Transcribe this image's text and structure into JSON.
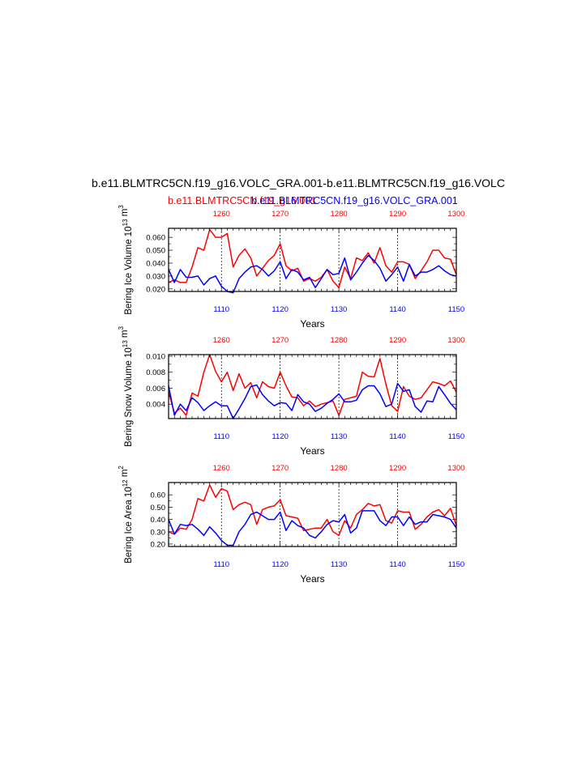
{
  "title": "b.e11.BLMTRC5CN.f19_g16.VOLC_GRA.001-b.e11.BLMTRC5CN.f19_g16.VOLC",
  "subtitle_red": "b.e11.BLMTRC5CN.f19_g16.001",
  "subtitle_blue": "b.e11.BLMTRC5CN.f19_g16.VOLC_GRA.001",
  "colors": {
    "red_series": "#ff0000",
    "blue_series": "#0000ff",
    "axis": "#000000"
  },
  "chart_data": [
    {
      "type": "line",
      "ylabel": "Bering Ice Volume 10",
      "ylabel_sup": "13",
      "ylabel_unit": " m",
      "ylabel_unit_sup": "3",
      "xlabel": "Years",
      "ylim": [
        0.018,
        0.067
      ],
      "yticks": [
        0.02,
        0.03,
        0.04,
        0.05,
        0.06
      ],
      "ytick_labels": [
        "0.020",
        "0.030",
        "0.040",
        "0.050",
        "0.060"
      ],
      "x_bottom": {
        "range": [
          1101,
          1150
        ],
        "ticks": [
          1110,
          1120,
          1130,
          1140,
          1150
        ],
        "labels": [
          "1110",
          "1120",
          "1130",
          "1140",
          "1150"
        ]
      },
      "x_top": {
        "ticks": [
          1260,
          1270,
          1280,
          1290,
          1300
        ],
        "labels": [
          "1260",
          "1270",
          "1280",
          "1290",
          "1300"
        ]
      },
      "series": [
        {
          "color": "red",
          "x": [
            1101,
            1102,
            1103,
            1104,
            1105,
            1106,
            1107,
            1108,
            1109,
            1110,
            1111,
            1112,
            1113,
            1114,
            1115,
            1116,
            1117,
            1118,
            1119,
            1120,
            1121,
            1122,
            1123,
            1124,
            1125,
            1126,
            1127,
            1128,
            1129,
            1130,
            1131,
            1132,
            1133,
            1134,
            1135,
            1136,
            1137,
            1138,
            1139,
            1140,
            1141,
            1142,
            1143,
            1144,
            1145,
            1146,
            1147,
            1148,
            1149,
            1150
          ],
          "values": [
            0.025,
            0.027,
            0.025,
            0.025,
            0.037,
            0.052,
            0.05,
            0.066,
            0.06,
            0.06,
            0.063,
            0.037,
            0.046,
            0.051,
            0.044,
            0.03,
            0.036,
            0.042,
            0.046,
            0.055,
            0.038,
            0.034,
            0.036,
            0.026,
            0.028,
            0.026,
            0.029,
            0.035,
            0.026,
            0.021,
            0.037,
            0.028,
            0.044,
            0.042,
            0.048,
            0.04,
            0.052,
            0.038,
            0.033,
            0.041,
            0.041,
            0.039,
            0.028,
            0.034,
            0.041,
            0.05,
            0.05,
            0.044,
            0.043,
            0.031
          ]
        },
        {
          "color": "blue",
          "x": [
            1101,
            1102,
            1103,
            1104,
            1105,
            1106,
            1107,
            1108,
            1109,
            1110,
            1111,
            1112,
            1113,
            1114,
            1115,
            1116,
            1117,
            1118,
            1119,
            1120,
            1121,
            1122,
            1123,
            1124,
            1125,
            1126,
            1127,
            1128,
            1129,
            1130,
            1131,
            1132,
            1133,
            1134,
            1135,
            1136,
            1137,
            1138,
            1139,
            1140,
            1141,
            1142,
            1143,
            1144,
            1145,
            1146,
            1147,
            1148,
            1149,
            1150
          ],
          "values": [
            0.035,
            0.025,
            0.035,
            0.029,
            0.029,
            0.03,
            0.023,
            0.028,
            0.03,
            0.022,
            0.018,
            0.017,
            0.028,
            0.033,
            0.037,
            0.038,
            0.035,
            0.03,
            0.034,
            0.041,
            0.028,
            0.035,
            0.033,
            0.027,
            0.029,
            0.021,
            0.028,
            0.035,
            0.031,
            0.032,
            0.044,
            0.027,
            0.033,
            0.04,
            0.046,
            0.042,
            0.036,
            0.026,
            0.031,
            0.037,
            0.026,
            0.039,
            0.03,
            0.033,
            0.033,
            0.035,
            0.038,
            0.034,
            0.031,
            0.03
          ]
        }
      ]
    },
    {
      "type": "line",
      "ylabel": "Bering Snow Volume 10",
      "ylabel_sup": "13",
      "ylabel_unit": " m",
      "ylabel_unit_sup": "3",
      "xlabel": "Years",
      "ylim": [
        0.0022,
        0.0102
      ],
      "yticks": [
        0.004,
        0.006,
        0.008,
        0.01
      ],
      "ytick_labels": [
        "0.004",
        "0.006",
        "0.008",
        "0.010"
      ],
      "x_bottom": {
        "range": [
          1101,
          1150
        ],
        "ticks": [
          1110,
          1120,
          1130,
          1140,
          1150
        ],
        "labels": [
          "1110",
          "1120",
          "1130",
          "1140",
          "1150"
        ]
      },
      "x_top": {
        "ticks": [
          1260,
          1270,
          1280,
          1290,
          1300
        ],
        "labels": [
          "1260",
          "1270",
          "1280",
          "1290",
          "1300"
        ]
      },
      "series": [
        {
          "color": "red",
          "x": [
            1101,
            1102,
            1103,
            1104,
            1105,
            1106,
            1107,
            1108,
            1109,
            1110,
            1111,
            1112,
            1113,
            1114,
            1115,
            1116,
            1117,
            1118,
            1119,
            1120,
            1121,
            1122,
            1123,
            1124,
            1125,
            1126,
            1127,
            1128,
            1129,
            1130,
            1131,
            1132,
            1133,
            1134,
            1135,
            1136,
            1137,
            1138,
            1139,
            1140,
            1141,
            1142,
            1143,
            1144,
            1145,
            1146,
            1147,
            1148,
            1149,
            1150
          ],
          "values": [
            0.0055,
            0.0029,
            0.0035,
            0.0026,
            0.0054,
            0.005,
            0.008,
            0.0102,
            0.0081,
            0.0068,
            0.008,
            0.0057,
            0.0078,
            0.006,
            0.0067,
            0.0048,
            0.0068,
            0.0062,
            0.006,
            0.008,
            0.0063,
            0.0049,
            0.0048,
            0.0038,
            0.0044,
            0.0037,
            0.004,
            0.0042,
            0.0044,
            0.0026,
            0.0046,
            0.0048,
            0.005,
            0.008,
            0.0075,
            0.0074,
            0.0097,
            0.0065,
            0.0038,
            0.0031,
            0.0062,
            0.005,
            0.0046,
            0.0048,
            0.0058,
            0.0068,
            0.0066,
            0.0063,
            0.0069,
            0.0055
          ]
        },
        {
          "color": "blue",
          "x": [
            1101,
            1102,
            1103,
            1104,
            1105,
            1106,
            1107,
            1108,
            1109,
            1110,
            1111,
            1112,
            1113,
            1114,
            1115,
            1116,
            1117,
            1118,
            1119,
            1120,
            1121,
            1122,
            1123,
            1124,
            1125,
            1126,
            1127,
            1128,
            1129,
            1130,
            1131,
            1132,
            1133,
            1134,
            1135,
            1136,
            1137,
            1138,
            1139,
            1140,
            1141,
            1142,
            1143,
            1144,
            1145,
            1146,
            1147,
            1148,
            1149,
            1150
          ],
          "values": [
            0.0063,
            0.0026,
            0.004,
            0.0032,
            0.0048,
            0.0042,
            0.0032,
            0.0038,
            0.0043,
            0.0038,
            0.0038,
            0.0022,
            0.0034,
            0.0047,
            0.0062,
            0.0064,
            0.0052,
            0.0044,
            0.0038,
            0.0042,
            0.0041,
            0.0032,
            0.0052,
            0.0043,
            0.004,
            0.0031,
            0.0035,
            0.0041,
            0.0046,
            0.0053,
            0.0043,
            0.0043,
            0.0045,
            0.0058,
            0.0063,
            0.0063,
            0.0053,
            0.0037,
            0.004,
            0.0066,
            0.0056,
            0.0058,
            0.0037,
            0.003,
            0.0044,
            0.0043,
            0.0062,
            0.0052,
            0.0041,
            0.0033
          ]
        }
      ]
    },
    {
      "type": "line",
      "ylabel": "Bering Ice Area 10",
      "ylabel_sup": "12",
      "ylabel_unit": " m",
      "ylabel_unit_sup": "2",
      "xlabel": "Years",
      "ylim": [
        0.18,
        0.7
      ],
      "yticks": [
        0.2,
        0.3,
        0.4,
        0.5,
        0.6
      ],
      "ytick_labels": [
        "0.20",
        "0.30",
        "0.40",
        "0.50",
        "0.60"
      ],
      "x_bottom": {
        "range": [
          1101,
          1150
        ],
        "ticks": [
          1110,
          1120,
          1130,
          1140,
          1150
        ],
        "labels": [
          "1110",
          "1120",
          "1130",
          "1140",
          "1150"
        ]
      },
      "x_top": {
        "ticks": [
          1260,
          1270,
          1280,
          1290,
          1300
        ],
        "labels": [
          "1260",
          "1270",
          "1280",
          "1290",
          "1300"
        ]
      },
      "series": [
        {
          "color": "red",
          "x": [
            1101,
            1102,
            1103,
            1104,
            1105,
            1106,
            1107,
            1108,
            1109,
            1110,
            1111,
            1112,
            1113,
            1114,
            1115,
            1116,
            1117,
            1118,
            1119,
            1120,
            1121,
            1122,
            1123,
            1124,
            1125,
            1126,
            1127,
            1128,
            1129,
            1130,
            1131,
            1132,
            1133,
            1134,
            1135,
            1136,
            1137,
            1138,
            1139,
            1140,
            1141,
            1142,
            1143,
            1144,
            1145,
            1146,
            1147,
            1148,
            1149,
            1150
          ],
          "values": [
            0.3,
            0.28,
            0.33,
            0.32,
            0.4,
            0.57,
            0.55,
            0.68,
            0.58,
            0.65,
            0.63,
            0.48,
            0.52,
            0.54,
            0.52,
            0.36,
            0.48,
            0.5,
            0.51,
            0.56,
            0.43,
            0.42,
            0.41,
            0.31,
            0.32,
            0.33,
            0.33,
            0.4,
            0.3,
            0.27,
            0.39,
            0.33,
            0.44,
            0.48,
            0.53,
            0.51,
            0.52,
            0.39,
            0.37,
            0.47,
            0.46,
            0.46,
            0.32,
            0.36,
            0.42,
            0.46,
            0.48,
            0.43,
            0.49,
            0.35
          ]
        },
        {
          "color": "blue",
          "x": [
            1101,
            1102,
            1103,
            1104,
            1105,
            1106,
            1107,
            1108,
            1109,
            1110,
            1111,
            1112,
            1113,
            1114,
            1115,
            1116,
            1117,
            1118,
            1119,
            1120,
            1121,
            1122,
            1123,
            1124,
            1125,
            1126,
            1127,
            1128,
            1129,
            1130,
            1131,
            1132,
            1133,
            1134,
            1135,
            1136,
            1137,
            1138,
            1139,
            1140,
            1141,
            1142,
            1143,
            1144,
            1145,
            1146,
            1147,
            1148,
            1149,
            1150
          ],
          "values": [
            0.4,
            0.28,
            0.36,
            0.35,
            0.36,
            0.32,
            0.27,
            0.34,
            0.29,
            0.23,
            0.19,
            0.19,
            0.3,
            0.36,
            0.44,
            0.46,
            0.43,
            0.4,
            0.4,
            0.46,
            0.31,
            0.39,
            0.35,
            0.33,
            0.27,
            0.25,
            0.3,
            0.36,
            0.39,
            0.38,
            0.44,
            0.29,
            0.33,
            0.47,
            0.47,
            0.47,
            0.39,
            0.35,
            0.42,
            0.42,
            0.35,
            0.42,
            0.36,
            0.38,
            0.38,
            0.44,
            0.43,
            0.42,
            0.4,
            0.33
          ]
        }
      ]
    }
  ]
}
